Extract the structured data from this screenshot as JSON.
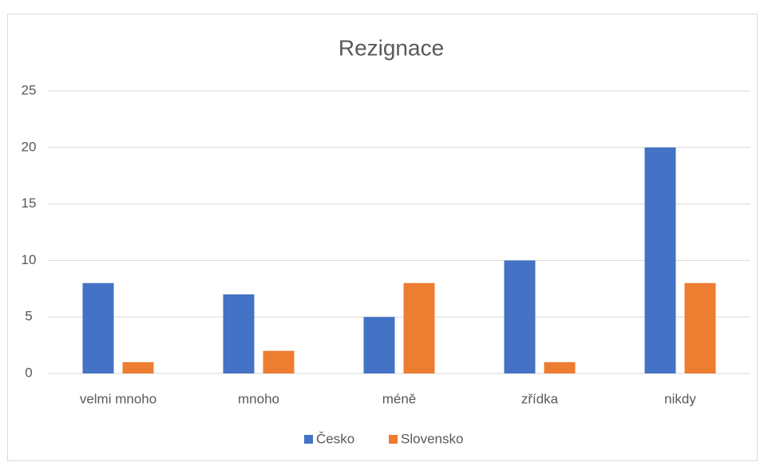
{
  "chart_data": {
    "type": "bar",
    "title": "Rezignace",
    "categories": [
      "velmi mnoho",
      "mnoho",
      "méně",
      "zřídka",
      "nikdy"
    ],
    "series": [
      {
        "name": "Česko",
        "color": "#4472c4",
        "values": [
          8,
          7,
          5,
          10,
          20
        ]
      },
      {
        "name": "Slovensko",
        "color": "#ed7d31",
        "values": [
          1,
          2,
          8,
          1,
          8
        ]
      }
    ],
    "ylim": [
      0,
      25
    ],
    "yticks": [
      0,
      5,
      10,
      15,
      20,
      25
    ],
    "grid": true,
    "legend": "bottom"
  }
}
